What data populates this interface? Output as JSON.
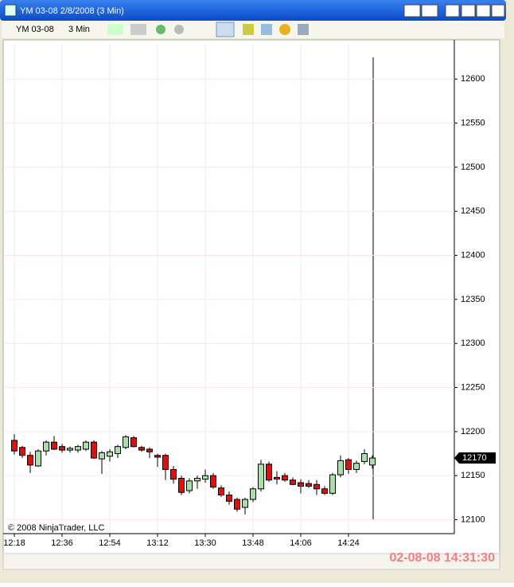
{
  "window": {
    "title": "YM 03-08  2/8/2008 (3 Min)",
    "instrument": "YM 03-08",
    "interval": "3 Min",
    "copyright": "© 2008 NinjaTrader, LLC",
    "timestamp": "02-08-08 14:31:30"
  },
  "chart_data": {
    "type": "candlestick",
    "up_color": "#a8e0a8",
    "down_color": "#e01010",
    "grid": true,
    "categories": [
      "12:18",
      null,
      null,
      null,
      null,
      null,
      "12:36",
      null,
      null,
      null,
      null,
      null,
      "12:54",
      null,
      null,
      null,
      null,
      null,
      "13:12",
      null,
      null,
      null,
      null,
      null,
      "13:30",
      null,
      null,
      null,
      null,
      null,
      "13:48",
      null,
      null,
      null,
      null,
      null,
      "14:06",
      null,
      null,
      null,
      null,
      null,
      "14:24",
      null,
      null,
      null
    ],
    "open": [
      12190,
      12182,
      12173,
      12161,
      12178,
      12188,
      12183,
      12179,
      12179,
      12180,
      12188,
      12169,
      12172,
      12175,
      12182,
      12193,
      12182,
      12180,
      12173,
      12173,
      12157,
      12147,
      12133,
      12144,
      12146,
      12150,
      12136,
      12128,
      12123,
      12114,
      12123,
      12135,
      12163,
      12148,
      12150,
      12145,
      12142,
      12141,
      12140,
      12135,
      12130,
      12151,
      12168,
      12157,
      12166,
      12162
    ],
    "high": [
      12197,
      12184,
      12177,
      12180,
      12190,
      12195,
      12186,
      12183,
      12185,
      12190,
      12190,
      12178,
      12180,
      12185,
      12196,
      12195,
      12184,
      12182,
      12175,
      12175,
      12161,
      12150,
      12147,
      12150,
      12157,
      12153,
      12139,
      12132,
      12125,
      12125,
      12137,
      12168,
      12166,
      12155,
      12153,
      12148,
      12146,
      12145,
      12145,
      12138,
      12153,
      12173,
      12170,
      12167,
      12180,
      12173
    ],
    "low": [
      12174,
      12170,
      12153,
      12160,
      12173,
      12179,
      12176,
      12176,
      12176,
      12178,
      12169,
      12152,
      12166,
      12170,
      12180,
      12182,
      12177,
      12170,
      12160,
      12145,
      12141,
      12128,
      12130,
      12135,
      12142,
      12135,
      12126,
      12117,
      12109,
      12106,
      12120,
      12132,
      12143,
      12140,
      12143,
      12139,
      12130,
      12136,
      12128,
      12128,
      12128,
      12148,
      12152,
      12153,
      12163,
      12158
    ],
    "close": [
      12178,
      12173,
      12162,
      12178,
      12188,
      12180,
      12179,
      12181,
      12183,
      12188,
      12170,
      12176,
      12177,
      12183,
      12194,
      12183,
      12179,
      12177,
      12171,
      12157,
      12146,
      12131,
      12144,
      12147,
      12150,
      12137,
      12128,
      12121,
      12112,
      12123,
      12135,
      12163,
      12145,
      12146,
      12145,
      12140,
      12138,
      12138,
      12135,
      12130,
      12151,
      12167,
      12157,
      12164,
      12175,
      12170
    ],
    "ylim": [
      12086,
      12640
    ],
    "yticks": [
      12100,
      12150,
      12200,
      12250,
      12300,
      12350,
      12400,
      12450,
      12500,
      12550,
      12600
    ]
  }
}
